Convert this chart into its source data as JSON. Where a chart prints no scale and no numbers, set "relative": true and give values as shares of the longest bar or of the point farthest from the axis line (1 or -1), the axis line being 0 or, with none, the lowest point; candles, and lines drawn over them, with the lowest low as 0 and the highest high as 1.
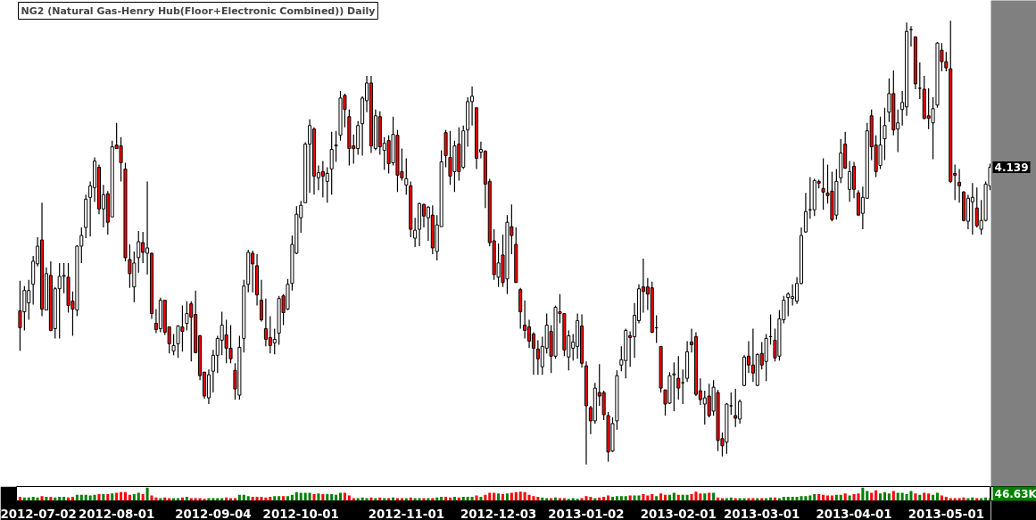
{
  "chart_data": [
    {
      "type": "candlestick",
      "title": "NG2 (Natural Gas-Henry Hub(Floor+Electronic Combined)) Daily",
      "relative": true,
      "tick_labels": false,
      "annotations": [
        "4.139"
      ],
      "categories": [
        null,
        null,
        null,
        "2012-07-02",
        null,
        null,
        null,
        null,
        null,
        null,
        null,
        null,
        null,
        null,
        null,
        null,
        null,
        null,
        null,
        null,
        null,
        null,
        "2012-08-01",
        null,
        null,
        null,
        null,
        null,
        null,
        null,
        null,
        null,
        null,
        null,
        null,
        null,
        null,
        null,
        null,
        null,
        null,
        null,
        null,
        null,
        "2012-09-04",
        null,
        null,
        null,
        null,
        null,
        null,
        null,
        null,
        null,
        null,
        null,
        null,
        null,
        null,
        null,
        null,
        null,
        null,
        null,
        "2012-10-01",
        null,
        null,
        null,
        null,
        null,
        null,
        null,
        null,
        null,
        null,
        null,
        null,
        null,
        null,
        null,
        null,
        null,
        null,
        null,
        null,
        null,
        null,
        null,
        "2012-11-01",
        null,
        null,
        null,
        null,
        null,
        null,
        null,
        null,
        null,
        null,
        null,
        null,
        null,
        null,
        null,
        null,
        null,
        null,
        null,
        null,
        "2012-12-03",
        null,
        null,
        null,
        null,
        null,
        null,
        null,
        null,
        null,
        null,
        null,
        null,
        null,
        null,
        null,
        null,
        null,
        null,
        null,
        "2013-01-02",
        null,
        null,
        null,
        null,
        null,
        null,
        null,
        null,
        null,
        null,
        null,
        null,
        null,
        null,
        null,
        null,
        null,
        null,
        null,
        null,
        "2013-02-01",
        null,
        null,
        null,
        null,
        null,
        null,
        null,
        null,
        null,
        null,
        null,
        null,
        null,
        null,
        null,
        null,
        null,
        null,
        "2013-03-01",
        null,
        null,
        null,
        null,
        null,
        null,
        null,
        null,
        null,
        null,
        null,
        null,
        null,
        null,
        null,
        null,
        null,
        null,
        null,
        null,
        "2013-04-01",
        null,
        null,
        null,
        null,
        null,
        null,
        null,
        null,
        null,
        null,
        null,
        null,
        null,
        null,
        null,
        null,
        null,
        null,
        null,
        null,
        "2013-05-01",
        null,
        null,
        null,
        null,
        null,
        null,
        null,
        null,
        null,
        null
      ],
      "ohlc": [
        [
          0.346,
          0.414,
          0.256,
          0.308
        ],
        [
          0.344,
          0.402,
          0.302,
          0.392
        ],
        [
          0.364,
          0.416,
          0.326,
          0.392
        ],
        [
          0.406,
          0.47,
          0.36,
          0.458
        ],
        [
          0.452,
          0.512,
          0.446,
          0.492
        ],
        [
          0.506,
          0.59,
          0.334,
          0.35
        ],
        [
          0.348,
          0.444,
          0.348,
          0.43
        ],
        [
          0.426,
          0.458,
          0.3,
          0.302
        ],
        [
          0.306,
          0.4,
          0.284,
          0.396
        ],
        [
          0.396,
          0.454,
          0.284,
          0.424
        ],
        [
          0.424,
          0.454,
          0.386,
          0.426
        ],
        [
          0.422,
          0.454,
          0.342,
          0.358
        ],
        [
          0.368,
          0.39,
          0.29,
          0.35
        ],
        [
          0.348,
          0.494,
          0.334,
          0.492
        ],
        [
          0.492,
          0.534,
          0.454,
          0.516
        ],
        [
          0.534,
          0.608,
          0.51,
          0.598
        ],
        [
          0.602,
          0.638,
          0.514,
          0.628
        ],
        [
          0.624,
          0.692,
          0.592,
          0.684
        ],
        [
          0.67,
          0.676,
          0.564,
          0.576
        ],
        [
          0.576,
          0.63,
          0.534,
          0.608
        ],
        [
          0.61,
          0.616,
          0.518,
          0.546
        ],
        [
          0.558,
          0.73,
          0.558,
          0.716
        ],
        [
          0.72,
          0.77,
          0.712,
          0.712
        ],
        [
          0.718,
          0.738,
          0.638,
          0.68
        ],
        [
          0.666,
          0.68,
          0.458,
          0.466
        ],
        [
          0.462,
          0.496,
          0.398,
          0.43
        ],
        [
          0.4,
          0.48,
          0.366,
          0.454
        ],
        [
          0.466,
          0.526,
          0.432,
          0.502
        ],
        [
          0.5,
          0.524,
          0.454,
          0.478
        ],
        [
          0.476,
          0.638,
          0.428,
          0.488
        ],
        [
          0.476,
          0.478,
          0.328,
          0.34
        ],
        [
          0.318,
          0.35,
          0.296,
          0.304
        ],
        [
          0.306,
          0.376,
          0.298,
          0.37
        ],
        [
          0.37,
          0.37,
          0.292,
          0.298
        ],
        [
          0.31,
          0.31,
          0.25,
          0.272
        ],
        [
          0.256,
          0.294,
          0.246,
          0.268
        ],
        [
          0.272,
          0.314,
          0.24,
          0.312
        ],
        [
          0.31,
          0.358,
          0.254,
          0.3
        ],
        [
          0.318,
          0.368,
          0.302,
          0.34
        ],
        [
          0.362,
          0.368,
          0.232,
          0.332
        ],
        [
          0.338,
          0.392,
          0.25,
          0.252
        ],
        [
          0.29,
          0.292,
          0.19,
          0.2
        ],
        [
          0.208,
          0.208,
          0.148,
          0.154
        ],
        [
          0.15,
          0.214,
          0.136,
          0.202
        ],
        [
          0.21,
          0.258,
          0.162,
          0.246
        ],
        [
          0.246,
          0.29,
          0.206,
          0.284
        ],
        [
          0.28,
          0.344,
          0.246,
          0.314
        ],
        [
          0.292,
          0.326,
          0.228,
          0.262
        ],
        [
          0.262,
          0.314,
          0.228,
          0.238
        ],
        [
          0.212,
          0.228,
          0.146,
          0.17
        ],
        [
          0.156,
          0.29,
          0.146,
          0.264
        ],
        [
          0.284,
          0.416,
          0.252,
          0.402
        ],
        [
          0.406,
          0.484,
          0.388,
          0.478
        ],
        [
          0.476,
          0.482,
          0.388,
          0.452
        ],
        [
          0.448,
          0.474,
          0.358,
          0.382
        ],
        [
          0.37,
          0.416,
          0.322,
          0.326
        ],
        [
          0.306,
          0.374,
          0.266,
          0.282
        ],
        [
          0.286,
          0.334,
          0.25,
          0.268
        ],
        [
          0.274,
          0.306,
          0.248,
          0.282
        ],
        [
          0.296,
          0.38,
          0.27,
          0.374
        ],
        [
          0.38,
          0.384,
          0.314,
          0.342
        ],
        [
          0.35,
          0.418,
          0.348,
          0.406
        ],
        [
          0.408,
          0.516,
          0.392,
          0.496
        ],
        [
          0.476,
          0.582,
          0.474,
          0.564
        ],
        [
          0.556,
          0.594,
          0.522,
          0.584
        ],
        [
          0.59,
          0.726,
          0.59,
          0.722
        ],
        [
          0.722,
          0.778,
          0.612,
          0.764
        ],
        [
          0.756,
          0.76,
          0.608,
          0.65
        ],
        [
          0.646,
          0.674,
          0.618,
          0.658
        ],
        [
          0.66,
          0.684,
          0.602,
          0.65
        ],
        [
          0.638,
          0.67,
          0.59,
          0.656
        ],
        [
          0.666,
          0.75,
          0.608,
          0.71
        ],
        [
          0.718,
          0.752,
          0.682,
          0.72
        ],
        [
          0.742,
          0.842,
          0.73,
          0.826
        ],
        [
          0.832,
          0.836,
          0.76,
          0.8
        ],
        [
          0.784,
          0.8,
          0.674,
          0.712
        ],
        [
          0.718,
          0.744,
          0.678,
          0.712
        ],
        [
          0.712,
          0.774,
          0.698,
          0.764
        ],
        [
          0.768,
          0.83,
          0.696,
          0.826
        ],
        [
          0.82,
          0.876,
          0.794,
          0.86
        ],
        [
          0.86,
          0.876,
          0.702,
          0.718
        ],
        [
          0.712,
          0.8,
          0.708,
          0.786
        ],
        [
          0.784,
          0.796,
          0.698,
          0.716
        ],
        [
          0.708,
          0.738,
          0.664,
          0.724
        ],
        [
          0.73,
          0.742,
          0.656,
          0.678
        ],
        [
          0.68,
          0.784,
          0.674,
          0.744
        ],
        [
          0.742,
          0.754,
          0.614,
          0.652
        ],
        [
          0.66,
          0.712,
          0.64,
          0.646
        ],
        [
          0.63,
          0.69,
          0.608,
          0.644
        ],
        [
          0.628,
          0.638,
          0.512,
          0.53
        ],
        [
          0.51,
          0.556,
          0.49,
          0.528
        ],
        [
          0.53,
          0.59,
          0.492,
          0.588
        ],
        [
          0.586,
          0.588,
          0.534,
          0.56
        ],
        [
          0.556,
          0.582,
          0.504,
          0.58
        ],
        [
          0.562,
          0.584,
          0.474,
          0.488
        ],
        [
          0.48,
          0.562,
          0.46,
          0.54
        ],
        [
          0.536,
          0.708,
          0.536,
          0.682
        ],
        [
          0.748,
          0.754,
          0.67,
          0.696
        ],
        [
          0.692,
          0.752,
          0.63,
          0.65
        ],
        [
          0.66,
          0.73,
          0.614,
          0.718
        ],
        [
          0.722,
          0.76,
          0.64,
          0.66
        ],
        [
          0.67,
          0.764,
          0.666,
          0.752
        ],
        [
          0.754,
          0.828,
          0.716,
          0.818
        ],
        [
          0.818,
          0.852,
          0.764,
          0.83
        ],
        [
          0.804,
          0.804,
          0.666,
          0.69
        ],
        [
          0.704,
          0.728,
          0.69,
          0.71
        ],
        [
          0.706,
          0.708,
          0.578,
          0.632
        ],
        [
          0.638,
          0.644,
          0.492,
          0.5
        ],
        [
          0.504,
          0.53,
          0.416,
          0.428
        ],
        [
          0.422,
          0.498,
          0.4,
          0.454
        ],
        [
          0.472,
          0.518,
          0.4,
          0.41
        ],
        [
          0.418,
          0.562,
          0.384,
          0.546
        ],
        [
          0.536,
          0.586,
          0.474,
          0.516
        ],
        [
          0.496,
          0.534,
          0.41,
          0.41
        ],
        [
          0.394,
          0.398,
          0.306,
          0.344
        ],
        [
          0.314,
          0.37,
          0.284,
          0.302
        ],
        [
          0.31,
          0.326,
          0.262,
          0.278
        ],
        [
          0.294,
          0.298,
          0.202,
          0.262
        ],
        [
          0.26,
          0.28,
          0.202,
          0.238
        ],
        [
          0.22,
          0.288,
          0.202,
          0.266
        ],
        [
          0.262,
          0.34,
          0.25,
          0.314
        ],
        [
          0.3,
          0.314,
          0.206,
          0.244
        ],
        [
          0.244,
          0.358,
          0.238,
          0.354
        ],
        [
          0.344,
          0.384,
          0.318,
          0.34
        ],
        [
          0.34,
          0.34,
          0.244,
          0.258
        ],
        [
          0.242,
          0.302,
          0.212,
          0.29
        ],
        [
          0.262,
          0.294,
          0.234,
          0.276
        ],
        [
          0.266,
          0.34,
          0.238,
          0.324
        ],
        [
          0.312,
          0.338,
          0.218,
          0.228
        ],
        [
          0.222,
          0.232,
          0.0,
          0.132
        ],
        [
          0.128,
          0.132,
          0.068,
          0.098
        ],
        [
          0.098,
          0.184,
          0.092,
          0.172
        ],
        [
          0.162,
          0.226,
          0.132,
          0.154
        ],
        [
          0.162,
          0.166,
          0.1,
          0.112
        ],
        [
          0.11,
          0.118,
          0.006,
          0.028
        ],
        [
          0.03,
          0.106,
          0.028,
          0.092
        ],
        [
          0.098,
          0.212,
          0.078,
          0.2
        ],
        [
          0.224,
          0.266,
          0.21,
          0.236
        ],
        [
          0.234,
          0.306,
          0.194,
          0.302
        ],
        [
          0.29,
          0.3,
          0.22,
          0.286
        ],
        [
          0.288,
          0.364,
          0.24,
          0.336
        ],
        [
          0.324,
          0.406,
          0.318,
          0.396
        ],
        [
          0.4,
          0.464,
          0.342,
          0.39
        ],
        [
          0.4,
          0.42,
          0.348,
          0.384
        ],
        [
          0.398,
          0.412,
          0.296,
          0.298
        ],
        [
          0.308,
          0.336,
          0.274,
          0.308
        ],
        [
          0.266,
          0.266,
          0.162,
          0.172
        ],
        [
          0.168,
          0.168,
          0.11,
          0.136
        ],
        [
          0.138,
          0.208,
          0.136,
          0.2
        ],
        [
          0.202,
          0.23,
          0.12,
          0.204
        ],
        [
          0.194,
          0.244,
          0.146,
          0.172
        ],
        [
          0.184,
          0.214,
          0.136,
          0.184
        ],
        [
          0.194,
          0.278,
          0.186,
          0.254
        ],
        [
          0.276,
          0.306,
          0.252,
          0.27
        ],
        [
          0.288,
          0.298,
          0.154,
          0.158
        ],
        [
          0.166,
          0.194,
          0.134,
          0.146
        ],
        [
          0.136,
          0.166,
          0.09,
          0.15
        ],
        [
          0.154,
          0.182,
          0.106,
          0.11
        ],
        [
          0.12,
          0.19,
          0.11,
          0.174
        ],
        [
          0.162,
          0.168,
          0.03,
          0.054
        ],
        [
          0.058,
          0.072,
          0.018,
          0.042
        ],
        [
          0.05,
          0.138,
          0.024,
          0.136
        ],
        [
          0.132,
          0.162,
          0.112,
          0.132
        ],
        [
          0.11,
          0.17,
          0.084,
          0.104
        ],
        [
          0.102,
          0.146,
          0.092,
          0.142
        ],
        [
          0.178,
          0.246,
          0.176,
          0.242
        ],
        [
          0.244,
          0.278,
          0.206,
          0.224
        ],
        [
          0.224,
          0.306,
          0.186,
          0.206
        ],
        [
          0.178,
          0.25,
          0.176,
          0.248
        ],
        [
          0.25,
          0.276,
          0.214,
          0.224
        ],
        [
          0.232,
          0.294,
          0.188,
          0.284
        ],
        [
          0.288,
          0.338,
          0.27,
          0.288
        ],
        [
          0.28,
          0.306,
          0.232,
          0.24
        ],
        [
          0.244,
          0.348,
          0.234,
          0.328
        ],
        [
          0.326,
          0.38,
          0.318,
          0.37
        ],
        [
          0.376,
          0.388,
          0.334,
          0.384
        ],
        [
          0.374,
          0.406,
          0.358,
          0.378
        ],
        [
          0.368,
          0.422,
          0.362,
          0.408
        ],
        [
          0.408,
          0.534,
          0.406,
          0.516
        ],
        [
          0.524,
          0.612,
          0.522,
          0.57
        ],
        [
          0.574,
          0.648,
          0.554,
          0.574
        ],
        [
          0.574,
          0.644,
          0.56,
          0.64
        ],
        [
          0.638,
          0.642,
          0.622,
          0.634
        ],
        [
          0.622,
          0.69,
          0.574,
          0.614
        ],
        [
          0.612,
          0.676,
          0.588,
          0.606
        ],
        [
          0.616,
          0.66,
          0.548,
          0.552
        ],
        [
          0.562,
          0.666,
          0.552,
          0.638
        ],
        [
          0.646,
          0.734,
          0.634,
          0.702
        ],
        [
          0.722,
          0.75,
          0.666,
          0.668
        ],
        [
          0.62,
          0.684,
          0.592,
          0.66
        ],
        [
          0.672,
          0.682,
          0.6,
          0.62
        ],
        [
          0.612,
          0.618,
          0.562,
          0.562
        ],
        [
          0.566,
          0.626,
          0.53,
          0.602
        ],
        [
          0.6,
          0.77,
          0.6,
          0.752
        ],
        [
          0.786,
          0.8,
          0.686,
          0.716
        ],
        [
          0.72,
          0.742,
          0.648,
          0.66
        ],
        [
          0.674,
          0.784,
          0.666,
          0.72
        ],
        [
          0.734,
          0.804,
          0.686,
          0.764
        ],
        [
          0.794,
          0.87,
          0.772,
          0.836
        ],
        [
          0.836,
          0.888,
          0.742,
          0.754
        ],
        [
          0.756,
          0.8,
          0.704,
          0.77
        ],
        [
          0.8,
          0.842,
          0.764,
          0.816
        ],
        [
          0.806,
          0.996,
          0.786,
          0.976
        ],
        [
          0.98,
          0.988,
          0.942,
          0.98
        ],
        [
          0.964,
          0.964,
          0.846,
          0.858
        ],
        [
          0.848,
          0.906,
          0.824,
          0.848
        ],
        [
          0.846,
          0.876,
          0.778,
          0.78
        ],
        [
          0.786,
          0.848,
          0.756,
          0.78
        ],
        [
          0.77,
          0.828,
          0.688,
          0.802
        ],
        [
          0.81,
          0.952,
          0.804,
          0.95
        ],
        [
          0.934,
          0.95,
          0.886,
          0.908
        ],
        [
          0.908,
          0.93,
          0.886,
          0.894
        ],
        [
          0.892,
          1.0,
          0.634,
          0.638
        ],
        [
          0.656,
          0.676,
          0.596,
          0.652
        ],
        [
          0.636,
          0.666,
          0.59,
          0.628
        ],
        [
          0.614,
          0.616,
          0.548,
          0.55
        ],
        [
          0.548,
          0.608,
          0.53,
          0.6
        ],
        [
          0.592,
          0.634,
          0.518,
          0.602
        ],
        [
          0.578,
          0.624,
          0.534,
          0.538
        ],
        [
          0.53,
          0.596,
          0.518,
          0.55
        ],
        [
          0.55,
          0.638,
          0.548,
          0.632
        ],
        [
          0.628,
          0.678,
          0.618,
          0.67
        ]
      ],
      "colors": [
        "#ff0000",
        "#ffffff",
        "#ffffff",
        "#ffffff",
        "#ffffff",
        "#ff0000",
        "#ffffff",
        "#ff0000",
        "#ffffff",
        "#ffffff",
        "#ffffff",
        "#ff0000",
        "#ff0000",
        "#ffffff",
        "#ffffff",
        "#ffffff",
        "#ffffff",
        "#ffffff",
        "#ff0000",
        "#ffffff",
        "#ff0000",
        "#ffffff",
        "#ff0000",
        "#ff0000",
        "#ff0000",
        "#ff0000",
        "#ffffff",
        "#ffffff",
        "#ff0000",
        "#ffffff",
        "#ff0000",
        "#ff0000",
        "#ffffff",
        "#ff0000",
        "#ff0000",
        "#ffffff",
        "#ffffff",
        "#ff0000",
        "#ffffff",
        "#ff0000",
        "#ff0000",
        "#ff0000",
        "#ff0000",
        "#ffffff",
        "#ffffff",
        "#ffffff",
        "#ffffff",
        "#ff0000",
        "#ff0000",
        "#ff0000",
        "#ffffff",
        "#ffffff",
        "#ffffff",
        "#ff0000",
        "#ff0000",
        "#ff0000",
        "#ff0000",
        "#ff0000",
        "#ffffff",
        "#ffffff",
        "#ff0000",
        "#ffffff",
        "#ffffff",
        "#ffffff",
        "#ffffff",
        "#ffffff",
        "#ffffff",
        "#ff0000",
        "#ffffff",
        "#ff0000",
        "#ffffff",
        "#ffffff",
        "#ffffff",
        "#ffffff",
        "#ff0000",
        "#ff0000",
        "#ff0000",
        "#ffffff",
        "#ffffff",
        "#ffffff",
        "#ff0000",
        "#ffffff",
        "#ff0000",
        "#ffffff",
        "#ff0000",
        "#ffffff",
        "#ff0000",
        "#ff0000",
        "#ffffff",
        "#ff0000",
        "#ffffff",
        "#ffffff",
        "#ff0000",
        "#ffffff",
        "#ff0000",
        "#ffffff",
        "#ffffff",
        "#ff0000",
        "#ff0000",
        "#ffffff",
        "#ff0000",
        "#ffffff",
        "#ffffff",
        "#ffffff",
        "#ff0000",
        "#ffffff",
        "#ff0000",
        "#ff0000",
        "#ff0000",
        "#ffffff",
        "#ff0000",
        "#ffffff",
        "#ff0000",
        "#ff0000",
        "#ff0000",
        "#ff0000",
        "#ff0000",
        "#ff0000",
        "#ff0000",
        "#ffffff",
        "#ffffff",
        "#ff0000",
        "#ffffff",
        "#ff0000",
        "#ff0000",
        "#ffffff",
        "#ffffff",
        "#ffffff",
        "#ff0000",
        "#ff0000",
        "#ff0000",
        "#ffffff",
        "#ff0000",
        "#ff0000",
        "#ff0000",
        "#ffffff",
        "#ffffff",
        "#ffffff",
        "#ffffff",
        "#ff0000",
        "#ffffff",
        "#ffffff",
        "#ff0000",
        "#ff0000",
        "#ff0000",
        "#000000",
        "#ff0000",
        "#ff0000",
        "#ffffff",
        "#ffffff",
        "#ff0000",
        "#000000",
        "#ffffff",
        "#ff0000",
        "#ff0000",
        "#ff0000",
        "#ffffff",
        "#ff0000",
        "#ffffff",
        "#ff0000",
        "#ff0000",
        "#ffffff",
        "#000000",
        "#ff0000",
        "#ffffff",
        "#ffffff",
        "#ff0000",
        "#ff0000",
        "#ffffff",
        "#ff0000",
        "#ffffff",
        "#000000",
        "#ff0000",
        "#ffffff",
        "#ffffff",
        "#ffffff",
        "#ffffff",
        "#ffffff",
        "#ffffff",
        "#ffffff",
        "#000000",
        "#ffffff",
        "#ff0000",
        "#ff0000",
        "#ff0000",
        "#ff0000",
        "#ffffff",
        "#ffffff",
        "#ff0000",
        "#ffffff",
        "#ff0000",
        "#ff0000",
        "#ffffff",
        "#ffffff",
        "#ff0000",
        "#ff0000",
        "#ffffff",
        "#ffffff",
        "#ffffff",
        "#ff0000",
        "#ffffff",
        "#ffffff",
        "#ffffff",
        "#000000",
        "#ff0000",
        "#000000",
        "#ff0000",
        "#ff0000",
        "#ffffff",
        "#ffffff",
        "#ff0000",
        "#ff0000",
        "#ff0000",
        "#ff0000",
        "#ff0000",
        "#ff0000",
        "#ffffff",
        "#ffffff",
        "#ff0000",
        "#ffffff",
        "#ffffff",
        "#ffffff"
      ]
    },
    {
      "type": "bar",
      "relative": true,
      "annotations": [
        "46.63K"
      ],
      "categories": [
        null,
        null,
        null,
        "2012-07-02",
        null,
        null,
        null,
        null,
        null,
        null,
        null,
        null,
        null,
        null,
        null,
        null,
        null,
        null,
        null,
        null,
        null,
        null,
        "2012-08-01",
        null,
        null,
        null,
        null,
        null,
        null,
        null,
        null,
        null,
        null,
        null,
        null,
        null,
        null,
        null,
        null,
        null,
        null,
        null,
        null,
        null,
        "2012-09-04",
        null,
        null,
        null,
        null,
        null,
        null,
        null,
        null,
        null,
        null,
        null,
        null,
        null,
        null,
        null,
        null,
        null,
        null,
        null,
        "2012-10-01",
        null,
        null,
        null,
        null,
        null,
        null,
        null,
        null,
        null,
        null,
        null,
        null,
        null,
        null,
        null,
        null,
        null,
        null,
        null,
        null,
        null,
        null,
        null,
        "2012-11-01",
        null,
        null,
        null,
        null,
        null,
        null,
        null,
        null,
        null,
        null,
        null,
        null,
        null,
        null,
        null,
        null,
        null,
        null,
        null,
        null,
        "2012-12-03",
        null,
        null,
        null,
        null,
        null,
        null,
        null,
        null,
        null,
        null,
        null,
        null,
        null,
        null,
        null,
        null,
        null,
        null,
        null,
        "2013-01-02",
        null,
        null,
        null,
        null,
        null,
        null,
        null,
        null,
        null,
        null,
        null,
        null,
        null,
        null,
        null,
        null,
        null,
        null,
        null,
        null,
        "2013-02-01",
        null,
        null,
        null,
        null,
        null,
        null,
        null,
        null,
        null,
        null,
        null,
        null,
        null,
        null,
        null,
        null,
        null,
        null,
        "2013-03-01",
        null,
        null,
        null,
        null,
        null,
        null,
        null,
        null,
        null,
        null,
        null,
        null,
        null,
        null,
        null,
        null,
        null,
        null,
        null,
        null,
        "2013-04-01",
        null,
        null,
        null,
        null,
        null,
        null,
        null,
        null,
        null,
        null,
        null,
        null,
        null,
        null,
        null,
        null,
        null,
        null,
        null,
        null,
        "2013-05-01",
        null,
        null,
        null,
        null,
        null,
        null,
        null,
        null,
        null,
        null
      ],
      "values": [
        0.3,
        0.25,
        0.25,
        0.3,
        0.25,
        0.35,
        0.3,
        0.3,
        0.25,
        0.3,
        0.3,
        0.25,
        0.3,
        0.45,
        0.45,
        0.45,
        0.4,
        0.45,
        0.5,
        0.5,
        0.5,
        0.55,
        0.6,
        0.65,
        0.65,
        0.45,
        0.5,
        0.6,
        0.5,
        1.0,
        0.4,
        0.25,
        0.2,
        0.25,
        0.2,
        0.2,
        0.2,
        0.25,
        0.3,
        0.2,
        0.2,
        0.2,
        0.15,
        0.2,
        0.2,
        0.2,
        0.2,
        0.25,
        0.2,
        0.2,
        0.45,
        0.45,
        0.35,
        0.3,
        0.3,
        0.3,
        0.25,
        0.3,
        0.35,
        0.35,
        0.35,
        0.35,
        0.45,
        0.65,
        0.6,
        0.6,
        0.6,
        0.5,
        0.55,
        0.5,
        0.5,
        0.5,
        0.45,
        0.6,
        0.6,
        0.4,
        0.2,
        0.2,
        0.25,
        0.2,
        0.25,
        0.2,
        0.25,
        0.2,
        0.2,
        0.25,
        0.2,
        0.2,
        0.2,
        0.25,
        0.2,
        0.2,
        0.2,
        0.2,
        0.2,
        0.25,
        0.3,
        0.3,
        0.25,
        0.3,
        0.25,
        0.3,
        0.3,
        0.3,
        0.4,
        0.3,
        0.45,
        0.6,
        0.6,
        0.55,
        0.5,
        0.55,
        0.6,
        0.65,
        0.7,
        0.65,
        0.45,
        0.35,
        0.3,
        0.25,
        0.2,
        0.2,
        0.25,
        0.2,
        0.2,
        0.15,
        0.2,
        0.15,
        0.2,
        0.35,
        0.3,
        0.2,
        0.25,
        0.3,
        0.4,
        0.3,
        0.35,
        0.35,
        0.35,
        0.4,
        0.4,
        0.4,
        0.5,
        0.4,
        0.5,
        0.35,
        0.55,
        0.45,
        0.45,
        0.6,
        0.45,
        0.45,
        0.45,
        0.5,
        0.7,
        0.55,
        0.55,
        0.6,
        0.6,
        0.25,
        0.2,
        0.2,
        0.25,
        0.2,
        0.2,
        0.2,
        0.2,
        0.2,
        0.2,
        0.2,
        0.2,
        0.25,
        0.25,
        0.2,
        0.3,
        0.3,
        0.3,
        0.3,
        0.35,
        0.35,
        0.4,
        0.5,
        0.5,
        0.45,
        0.4,
        0.4,
        0.45,
        0.45,
        0.55,
        0.4,
        0.5,
        0.55,
        1.0,
        0.75,
        0.6,
        0.8,
        0.55,
        0.65,
        0.55,
        0.75,
        0.6,
        0.6,
        0.5,
        0.75,
        0.55,
        0.45,
        0.6,
        0.55,
        0.45,
        0.6,
        0.4,
        0.3,
        0.2,
        0.2,
        0.2,
        0.25,
        0.2,
        0.25,
        0.2,
        0.2,
        0.25,
        0.2
      ],
      "colors": [
        "#ff0000",
        "#008000",
        "#008000",
        "#008000",
        "#008000",
        "#ff0000",
        "#008000",
        "#ff0000",
        "#008000",
        "#008000",
        "#008000",
        "#ff0000",
        "#ff0000",
        "#008000",
        "#008000",
        "#008000",
        "#008000",
        "#008000",
        "#ff0000",
        "#008000",
        "#ff0000",
        "#008000",
        "#ff0000",
        "#ff0000",
        "#ff0000",
        "#ff0000",
        "#008000",
        "#008000",
        "#ff0000",
        "#008000",
        "#ff0000",
        "#ff0000",
        "#008000",
        "#ff0000",
        "#ff0000",
        "#008000",
        "#008000",
        "#ff0000",
        "#008000",
        "#ff0000",
        "#ff0000",
        "#ff0000",
        "#ff0000",
        "#008000",
        "#008000",
        "#008000",
        "#008000",
        "#ff0000",
        "#ff0000",
        "#ff0000",
        "#008000",
        "#008000",
        "#008000",
        "#ff0000",
        "#ff0000",
        "#ff0000",
        "#ff0000",
        "#ff0000",
        "#008000",
        "#008000",
        "#ff0000",
        "#008000",
        "#008000",
        "#008000",
        "#008000",
        "#008000",
        "#008000",
        "#ff0000",
        "#008000",
        "#ff0000",
        "#008000",
        "#008000",
        "#008000",
        "#008000",
        "#ff0000",
        "#ff0000",
        "#ff0000",
        "#008000",
        "#008000",
        "#008000",
        "#ff0000",
        "#008000",
        "#ff0000",
        "#008000",
        "#ff0000",
        "#008000",
        "#ff0000",
        "#ff0000",
        "#008000",
        "#ff0000",
        "#008000",
        "#008000",
        "#ff0000",
        "#008000",
        "#ff0000",
        "#008000",
        "#008000",
        "#ff0000",
        "#ff0000",
        "#008000",
        "#ff0000",
        "#008000",
        "#008000",
        "#008000",
        "#ff0000",
        "#008000",
        "#ff0000",
        "#ff0000",
        "#ff0000",
        "#008000",
        "#ff0000",
        "#008000",
        "#ff0000",
        "#ff0000",
        "#ff0000",
        "#ff0000",
        "#ff0000",
        "#ff0000",
        "#ff0000",
        "#008000",
        "#008000",
        "#ff0000",
        "#008000",
        "#ff0000",
        "#ff0000",
        "#008000",
        "#008000",
        "#008000",
        "#ff0000",
        "#ff0000",
        "#ff0000",
        "#008000",
        "#ff0000",
        "#ff0000",
        "#ff0000",
        "#008000",
        "#008000",
        "#008000",
        "#008000",
        "#ff0000",
        "#008000",
        "#008000",
        "#ff0000",
        "#ff0000",
        "#ff0000",
        "#008000",
        "#ff0000",
        "#ff0000",
        "#008000",
        "#008000",
        "#ff0000",
        "#008000",
        "#008000",
        "#ff0000",
        "#ff0000",
        "#ff0000",
        "#008000",
        "#ff0000",
        "#008000",
        "#ff0000",
        "#ff0000",
        "#008000",
        "#008000",
        "#ff0000",
        "#008000",
        "#008000",
        "#ff0000",
        "#ff0000",
        "#008000",
        "#ff0000",
        "#008000",
        "#008000",
        "#ff0000",
        "#008000",
        "#008000",
        "#008000",
        "#008000",
        "#008000",
        "#008000",
        "#008000",
        "#008000",
        "#008000",
        "#ff0000",
        "#ff0000",
        "#ff0000",
        "#ff0000",
        "#008000",
        "#008000",
        "#ff0000",
        "#008000",
        "#ff0000",
        "#ff0000",
        "#008000",
        "#008000",
        "#ff0000",
        "#ff0000",
        "#008000",
        "#008000",
        "#008000",
        "#ff0000",
        "#008000",
        "#008000",
        "#008000",
        "#008000",
        "#ff0000",
        "#008000",
        "#ff0000",
        "#ff0000",
        "#008000",
        "#008000",
        "#ff0000",
        "#ff0000",
        "#ff0000",
        "#ff0000",
        "#ff0000",
        "#ff0000",
        "#008000",
        "#008000",
        "#ff0000",
        "#008000",
        "#008000",
        "#008000"
      ]
    }
  ]
}
